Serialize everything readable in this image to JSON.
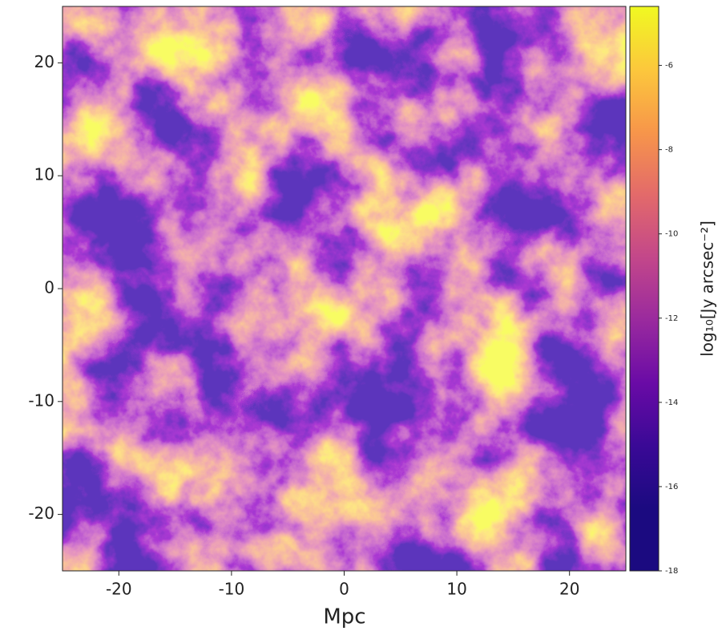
{
  "chart_data": {
    "type": "image",
    "xlabel": "Mpc",
    "xlim": [
      -25,
      25
    ],
    "xticks": [
      -20,
      -10,
      0,
      10,
      20
    ],
    "ylim": [
      -25,
      25
    ],
    "yticks": [
      -20,
      -10,
      0,
      10,
      20
    ],
    "colorbar": {
      "label": "log₁₀[Jy arcsec⁻²]",
      "lim": [
        -18,
        -4.6
      ],
      "ticks": [
        -18,
        -16,
        -14,
        -12,
        -10,
        -8,
        -6
      ]
    },
    "colormap": [
      "#1b0a80",
      "#1b0a80",
      "#3a0996",
      "#6a0ba6",
      "#9a2a9e",
      "#c3478a",
      "#e36a6a",
      "#f7964a",
      "#fcc83c",
      "#f0f921"
    ]
  }
}
